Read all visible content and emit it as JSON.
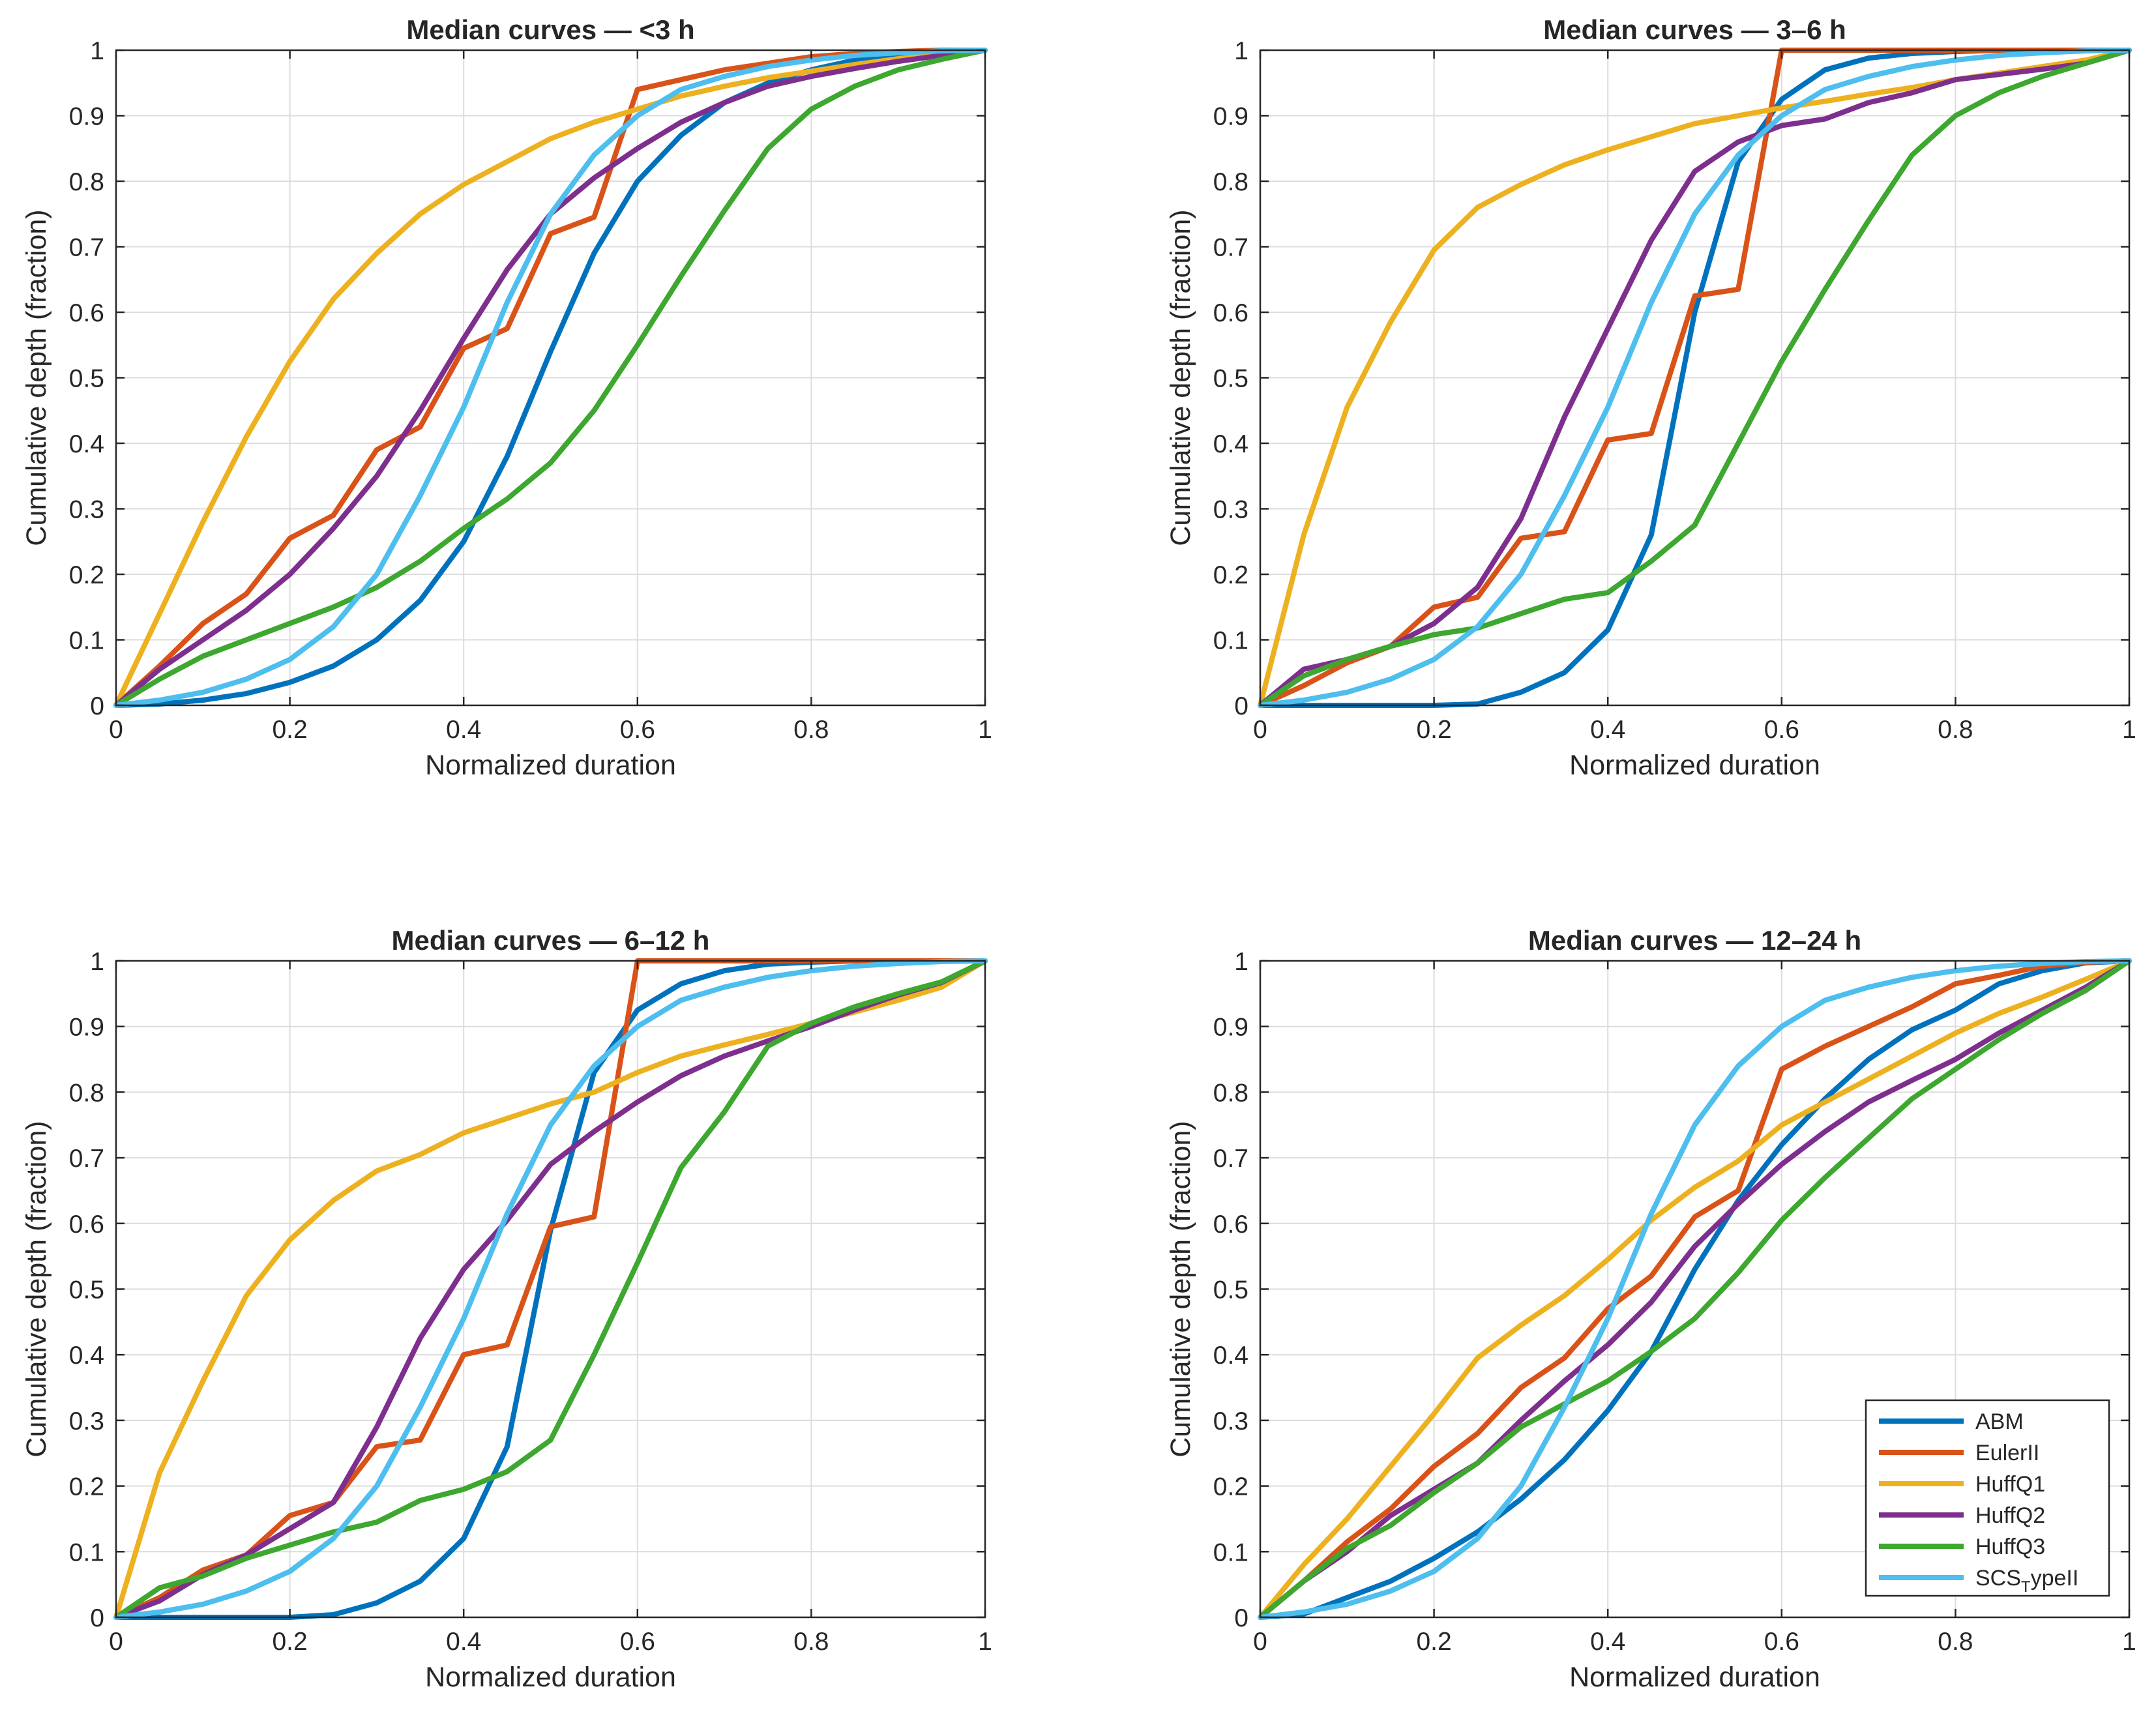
{
  "chart_data": [
    {
      "type": "line",
      "title": "Median curves — <3 h",
      "xlabel": "Normalized duration",
      "ylabel": "Cumulative depth (fraction)",
      "xlim": [
        0,
        1
      ],
      "ylim": [
        0,
        1
      ],
      "xticks": [
        "0",
        "0.2",
        "0.4",
        "0.6",
        "0.8",
        "1"
      ],
      "yticks": [
        "0",
        "0.1",
        "0.2",
        "0.3",
        "0.4",
        "0.5",
        "0.6",
        "0.7",
        "0.8",
        "0.9",
        "1"
      ],
      "grid": true,
      "x": [
        0,
        0.05,
        0.1,
        0.15,
        0.2,
        0.25,
        0.3,
        0.35,
        0.4,
        0.45,
        0.5,
        0.55,
        0.6,
        0.65,
        0.7,
        0.75,
        0.8,
        0.85,
        0.9,
        0.95,
        1
      ],
      "series": [
        {
          "name": "ABM",
          "color": "#0072BD",
          "values": [
            0,
            0.002,
            0.008,
            0.018,
            0.035,
            0.06,
            0.1,
            0.16,
            0.25,
            0.38,
            0.54,
            0.69,
            0.8,
            0.87,
            0.92,
            0.95,
            0.97,
            0.985,
            0.993,
            0.998,
            1
          ]
        },
        {
          "name": "EulerII",
          "color": "#D95319",
          "values": [
            0,
            0.06,
            0.125,
            0.17,
            0.255,
            0.29,
            0.39,
            0.425,
            0.545,
            0.575,
            0.72,
            0.745,
            0.94,
            0.955,
            0.97,
            0.98,
            0.99,
            0.995,
            0.998,
            1,
            1
          ]
        },
        {
          "name": "HuffQ1",
          "color": "#EDB120",
          "values": [
            0,
            0.14,
            0.28,
            0.41,
            0.525,
            0.62,
            0.69,
            0.75,
            0.795,
            0.83,
            0.865,
            0.89,
            0.91,
            0.93,
            0.945,
            0.958,
            0.968,
            0.978,
            0.987,
            0.994,
            1
          ]
        },
        {
          "name": "HuffQ2",
          "color": "#7E2F8E",
          "values": [
            0,
            0.055,
            0.1,
            0.145,
            0.2,
            0.27,
            0.35,
            0.45,
            0.56,
            0.665,
            0.75,
            0.805,
            0.85,
            0.89,
            0.92,
            0.945,
            0.96,
            0.972,
            0.983,
            0.992,
            1
          ]
        },
        {
          "name": "HuffQ3",
          "color": "#3DA72F",
          "values": [
            0,
            0.04,
            0.075,
            0.1,
            0.125,
            0.15,
            0.18,
            0.22,
            0.27,
            0.315,
            0.37,
            0.45,
            0.55,
            0.655,
            0.755,
            0.85,
            0.91,
            0.945,
            0.97,
            0.986,
            1
          ]
        },
        {
          "name": "SCSTypeII",
          "color": "#4DBEEE",
          "values": [
            0,
            0.008,
            0.02,
            0.04,
            0.07,
            0.12,
            0.2,
            0.32,
            0.455,
            0.615,
            0.75,
            0.84,
            0.9,
            0.94,
            0.96,
            0.975,
            0.985,
            0.992,
            0.996,
            0.999,
            1
          ]
        }
      ]
    },
    {
      "type": "line",
      "title": "Median curves — 3–6 h",
      "xlabel": "Normalized duration",
      "ylabel": "Cumulative depth (fraction)",
      "xlim": [
        0,
        1
      ],
      "ylim": [
        0,
        1
      ],
      "xticks": [
        "0",
        "0.2",
        "0.4",
        "0.6",
        "0.8",
        "1"
      ],
      "yticks": [
        "0",
        "0.1",
        "0.2",
        "0.3",
        "0.4",
        "0.5",
        "0.6",
        "0.7",
        "0.8",
        "0.9",
        "1"
      ],
      "grid": true,
      "x": [
        0,
        0.05,
        0.1,
        0.15,
        0.2,
        0.25,
        0.3,
        0.35,
        0.4,
        0.45,
        0.5,
        0.55,
        0.6,
        0.65,
        0.7,
        0.75,
        0.8,
        0.85,
        0.9,
        0.95,
        1
      ],
      "series": [
        {
          "name": "ABM",
          "color": "#0072BD",
          "values": [
            0,
            0,
            0,
            0,
            0,
            0.002,
            0.02,
            0.05,
            0.115,
            0.26,
            0.6,
            0.83,
            0.925,
            0.97,
            0.988,
            0.995,
            0.998,
            1,
            1,
            1,
            1
          ]
        },
        {
          "name": "EulerII",
          "color": "#D95319",
          "values": [
            0,
            0.03,
            0.065,
            0.09,
            0.15,
            0.165,
            0.255,
            0.265,
            0.405,
            0.415,
            0.625,
            0.635,
            1,
            1,
            1,
            1,
            1,
            1,
            1,
            1,
            1
          ]
        },
        {
          "name": "HuffQ1",
          "color": "#EDB120",
          "values": [
            0,
            0.26,
            0.455,
            0.585,
            0.695,
            0.76,
            0.795,
            0.825,
            0.848,
            0.868,
            0.888,
            0.9,
            0.912,
            0.922,
            0.933,
            0.943,
            0.955,
            0.965,
            0.975,
            0.985,
            1
          ]
        },
        {
          "name": "HuffQ2",
          "color": "#7E2F8E",
          "values": [
            0,
            0.055,
            0.07,
            0.09,
            0.125,
            0.18,
            0.285,
            0.44,
            0.575,
            0.71,
            0.815,
            0.86,
            0.885,
            0.895,
            0.92,
            0.935,
            0.955,
            0.963,
            0.971,
            0.98,
            1
          ]
        },
        {
          "name": "HuffQ3",
          "color": "#3DA72F",
          "values": [
            0,
            0.045,
            0.07,
            0.09,
            0.108,
            0.118,
            0.14,
            0.162,
            0.172,
            0.22,
            0.275,
            0.4,
            0.525,
            0.635,
            0.74,
            0.84,
            0.9,
            0.935,
            0.96,
            0.98,
            1
          ]
        },
        {
          "name": "SCSTypeII",
          "color": "#4DBEEE",
          "values": [
            0,
            0.008,
            0.02,
            0.04,
            0.07,
            0.12,
            0.2,
            0.32,
            0.455,
            0.615,
            0.75,
            0.84,
            0.9,
            0.94,
            0.96,
            0.975,
            0.985,
            0.992,
            0.996,
            0.999,
            1
          ]
        }
      ]
    },
    {
      "type": "line",
      "title": "Median curves — 6–12 h",
      "xlabel": "Normalized duration",
      "ylabel": "Cumulative depth (fraction)",
      "xlim": [
        0,
        1
      ],
      "ylim": [
        0,
        1
      ],
      "xticks": [
        "0",
        "0.2",
        "0.4",
        "0.6",
        "0.8",
        "1"
      ],
      "yticks": [
        "0",
        "0.1",
        "0.2",
        "0.3",
        "0.4",
        "0.5",
        "0.6",
        "0.7",
        "0.8",
        "0.9",
        "1"
      ],
      "grid": true,
      "x": [
        0,
        0.05,
        0.1,
        0.15,
        0.2,
        0.25,
        0.3,
        0.35,
        0.4,
        0.45,
        0.5,
        0.55,
        0.6,
        0.65,
        0.7,
        0.75,
        0.8,
        0.85,
        0.9,
        0.95,
        1
      ],
      "series": [
        {
          "name": "ABM",
          "color": "#0072BD",
          "values": [
            0,
            0,
            0,
            0,
            0,
            0.004,
            0.022,
            0.055,
            0.12,
            0.26,
            0.59,
            0.83,
            0.925,
            0.965,
            0.985,
            0.995,
            0.998,
            1,
            1,
            1,
            1
          ]
        },
        {
          "name": "EulerII",
          "color": "#D95319",
          "values": [
            0,
            0.03,
            0.072,
            0.095,
            0.155,
            0.175,
            0.26,
            0.27,
            0.4,
            0.415,
            0.595,
            0.61,
            1,
            1,
            1,
            1,
            1,
            1,
            1,
            1,
            1
          ]
        },
        {
          "name": "HuffQ1",
          "color": "#EDB120",
          "values": [
            0,
            0.22,
            0.36,
            0.49,
            0.575,
            0.635,
            0.68,
            0.705,
            0.738,
            0.76,
            0.782,
            0.8,
            0.83,
            0.855,
            0.872,
            0.888,
            0.905,
            0.922,
            0.94,
            0.96,
            1
          ]
        },
        {
          "name": "HuffQ2",
          "color": "#7E2F8E",
          "values": [
            0,
            0.025,
            0.065,
            0.095,
            0.135,
            0.175,
            0.29,
            0.425,
            0.53,
            0.605,
            0.69,
            0.74,
            0.785,
            0.825,
            0.855,
            0.878,
            0.9,
            0.925,
            0.948,
            0.967,
            1
          ]
        },
        {
          "name": "HuffQ3",
          "color": "#3DA72F",
          "values": [
            0,
            0.045,
            0.063,
            0.09,
            0.11,
            0.13,
            0.145,
            0.178,
            0.195,
            0.222,
            0.27,
            0.4,
            0.54,
            0.685,
            0.77,
            0.87,
            0.905,
            0.93,
            0.95,
            0.968,
            1
          ]
        },
        {
          "name": "SCSTypeII",
          "color": "#4DBEEE",
          "values": [
            0,
            0.008,
            0.02,
            0.04,
            0.07,
            0.12,
            0.2,
            0.32,
            0.455,
            0.615,
            0.75,
            0.84,
            0.9,
            0.94,
            0.96,
            0.975,
            0.985,
            0.992,
            0.996,
            0.999,
            1
          ]
        }
      ]
    },
    {
      "type": "line",
      "title": "Median curves — 12–24 h",
      "xlabel": "Normalized duration",
      "ylabel": "Cumulative depth (fraction)",
      "xlim": [
        0,
        1
      ],
      "ylim": [
        0,
        1
      ],
      "xticks": [
        "0",
        "0.2",
        "0.4",
        "0.6",
        "0.8",
        "1"
      ],
      "yticks": [
        "0",
        "0.1",
        "0.2",
        "0.3",
        "0.4",
        "0.5",
        "0.6",
        "0.7",
        "0.8",
        "0.9",
        "1"
      ],
      "grid": true,
      "legend": "bottom-right",
      "x": [
        0,
        0.05,
        0.1,
        0.15,
        0.2,
        0.25,
        0.3,
        0.35,
        0.4,
        0.45,
        0.5,
        0.55,
        0.6,
        0.65,
        0.7,
        0.75,
        0.8,
        0.85,
        0.9,
        0.95,
        1
      ],
      "series": [
        {
          "name": "ABM",
          "color": "#0072BD",
          "values": [
            0,
            0.005,
            0.03,
            0.055,
            0.09,
            0.13,
            0.18,
            0.24,
            0.315,
            0.405,
            0.53,
            0.635,
            0.72,
            0.79,
            0.85,
            0.895,
            0.925,
            0.965,
            0.985,
            0.997,
            1
          ]
        },
        {
          "name": "EulerII",
          "color": "#D95319",
          "values": [
            0,
            0.055,
            0.115,
            0.165,
            0.23,
            0.28,
            0.35,
            0.395,
            0.47,
            0.52,
            0.61,
            0.65,
            0.835,
            0.87,
            0.9,
            0.93,
            0.965,
            0.978,
            0.992,
            0.998,
            1
          ]
        },
        {
          "name": "HuffQ1",
          "color": "#EDB120",
          "values": [
            0,
            0.08,
            0.15,
            0.23,
            0.31,
            0.395,
            0.445,
            0.49,
            0.545,
            0.605,
            0.655,
            0.695,
            0.75,
            0.785,
            0.82,
            0.855,
            0.89,
            0.92,
            0.945,
            0.972,
            1
          ]
        },
        {
          "name": "HuffQ2",
          "color": "#7E2F8E",
          "values": [
            0,
            0.055,
            0.1,
            0.155,
            0.195,
            0.235,
            0.3,
            0.36,
            0.415,
            0.48,
            0.565,
            0.63,
            0.69,
            0.74,
            0.785,
            0.818,
            0.85,
            0.89,
            0.925,
            0.96,
            1
          ]
        },
        {
          "name": "HuffQ3",
          "color": "#3DA72F",
          "values": [
            0,
            0.055,
            0.105,
            0.14,
            0.19,
            0.235,
            0.29,
            0.325,
            0.36,
            0.405,
            0.455,
            0.525,
            0.605,
            0.67,
            0.73,
            0.79,
            0.835,
            0.88,
            0.92,
            0.955,
            1
          ]
        },
        {
          "name": "SCSTypeII",
          "color": "#4DBEEE",
          "values": [
            0,
            0.008,
            0.02,
            0.04,
            0.07,
            0.12,
            0.2,
            0.32,
            0.455,
            0.615,
            0.75,
            0.84,
            0.9,
            0.94,
            0.96,
            0.975,
            0.985,
            0.992,
            0.996,
            0.999,
            1
          ]
        }
      ]
    }
  ],
  "legend": {
    "entries": [
      {
        "label": "ABM",
        "color": "#0072BD"
      },
      {
        "label": "EulerII",
        "color": "#D95319"
      },
      {
        "label": "HuffQ1",
        "color": "#EDB120"
      },
      {
        "label": "HuffQ2",
        "color": "#7E2F8E"
      },
      {
        "label": "HuffQ3",
        "color": "#3DA72F"
      },
      {
        "label": "SCSTypeII",
        "label_main": "SCS",
        "label_sub": "T",
        "label_rest": "ypeII",
        "color": "#4DBEEE"
      }
    ]
  }
}
